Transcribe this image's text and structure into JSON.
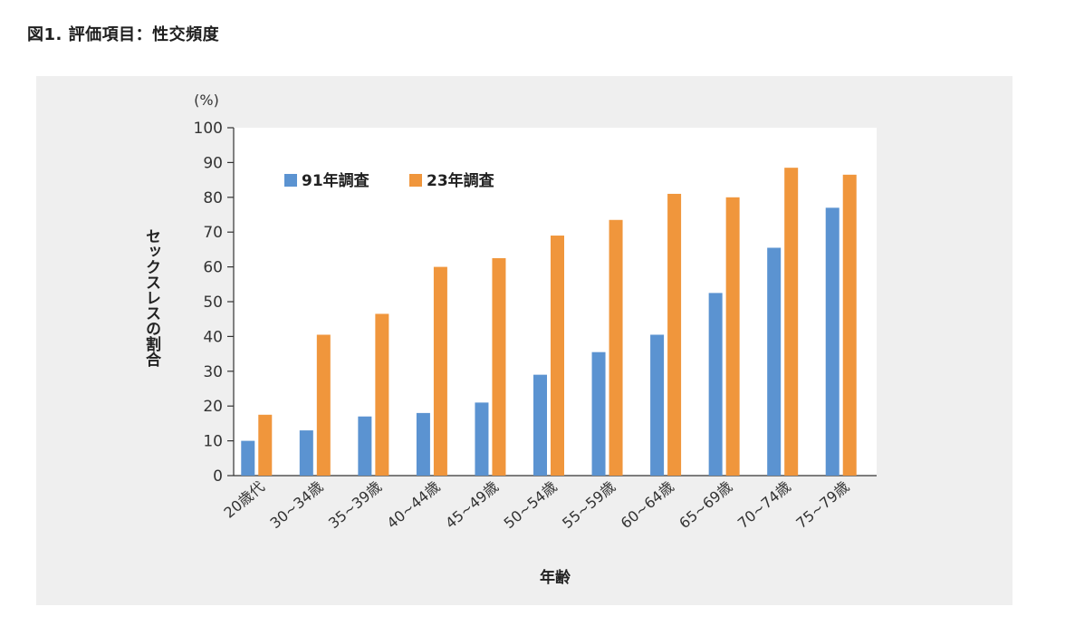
{
  "figure_title": "図1. 評価項目：性交頻度",
  "chart_data": {
    "type": "bar",
    "title": "",
    "xlabel": "年齢",
    "ylabel": "セックスレスの割合",
    "yunit": "(%)",
    "ylim": [
      0,
      100
    ],
    "yticks": [
      0,
      10,
      20,
      30,
      40,
      50,
      60,
      70,
      80,
      90,
      100
    ],
    "grid": false,
    "legend_position": "top-left",
    "categories": [
      "20歳代",
      "30~34歳",
      "35~39歳",
      "40~44歳",
      "45~49歳",
      "50~54歳",
      "55~59歳",
      "60~64歳",
      "65~69歳",
      "70~74歳",
      "75~79歳"
    ],
    "series": [
      {
        "name": "91年調査",
        "color": "#5b93d1",
        "values": [
          10,
          13,
          17,
          18,
          21,
          29,
          35.5,
          40.5,
          52.5,
          65.5,
          77
        ]
      },
      {
        "name": "23年調査",
        "color": "#f0963c",
        "values": [
          17.5,
          40.5,
          46.5,
          60,
          62.5,
          69,
          73.5,
          81,
          80,
          88.5,
          86.5
        ]
      }
    ]
  }
}
